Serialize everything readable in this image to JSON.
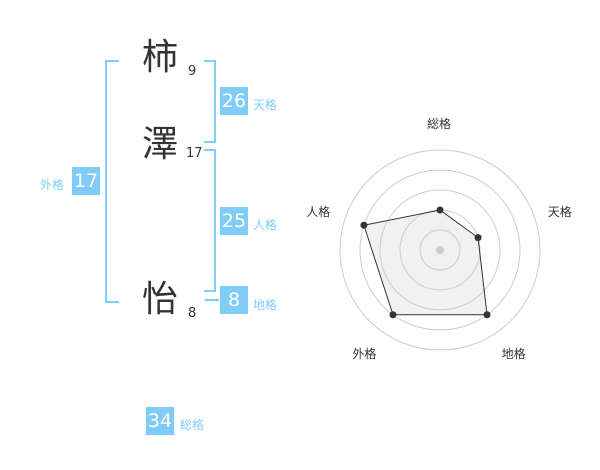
{
  "name": [
    {
      "char": "柿",
      "strokes": "9"
    },
    {
      "char": "澤",
      "strokes": "17"
    },
    {
      "char": "怡",
      "strokes": "8"
    }
  ],
  "fortunes": {
    "tenkaku": {
      "label": "天格",
      "value": "26"
    },
    "jinkaku": {
      "label": "人格",
      "value": "25"
    },
    "chikaku": {
      "label": "地格",
      "value": "8"
    },
    "gaikaku": {
      "label": "外格",
      "value": "17"
    },
    "soukaku": {
      "label": "総格",
      "value": "34"
    }
  },
  "accent_color": "#80ccf8",
  "chart_data": {
    "type": "radar",
    "axes": [
      "総格",
      "天格",
      "地格",
      "外格",
      "人格"
    ],
    "values": [
      2,
      2,
      4,
      4,
      4
    ],
    "range": [
      0,
      5
    ],
    "rings": 5
  }
}
